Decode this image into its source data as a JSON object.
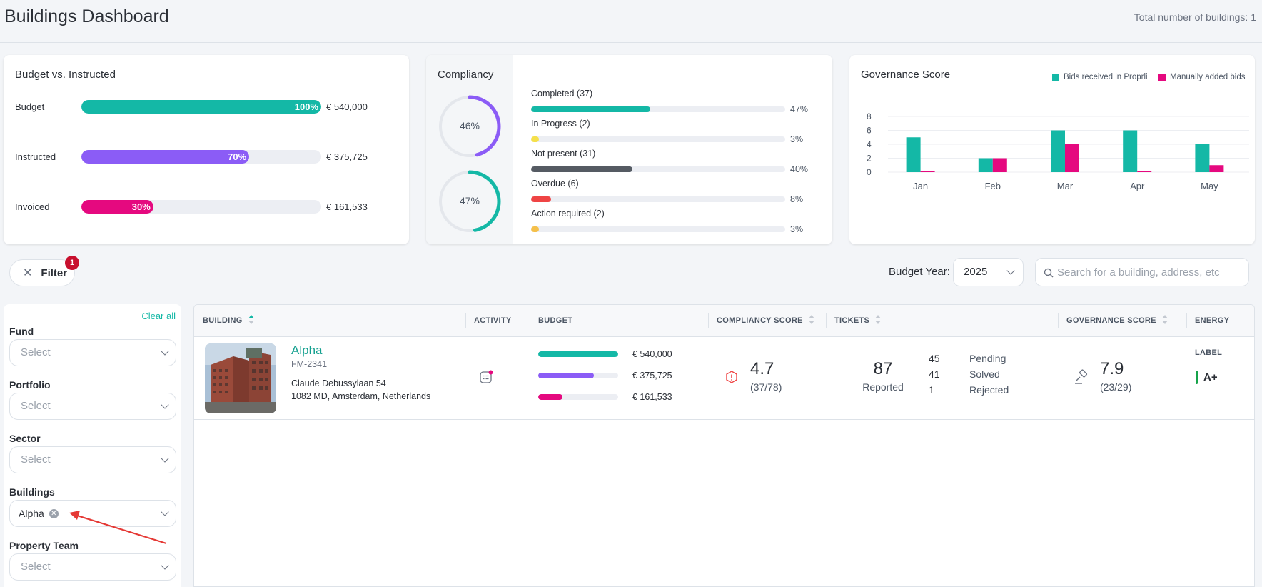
{
  "header": {
    "title": "Buildings Dashboard",
    "total_buildings": "Total number of buildings: 1"
  },
  "budget_card": {
    "title": "Budget vs. Instructed",
    "rows": [
      {
        "label": "Budget",
        "percent": 100,
        "percent_label": "100%",
        "value": "€ 540,000",
        "color": "#14b8a6"
      },
      {
        "label": "Instructed",
        "percent": 70,
        "percent_label": "70%",
        "value": "€ 375,725",
        "color": "#8b5cf6"
      },
      {
        "label": "Invoiced",
        "percent": 30,
        "percent_label": "30%",
        "value": "€ 161,533",
        "color": "#e5097f"
      }
    ]
  },
  "compliancy_card": {
    "title": "Compliancy",
    "donuts": [
      {
        "label": "46%",
        "percent": 46,
        "color": "#8b5cf6"
      },
      {
        "label": "47%",
        "percent": 47,
        "color": "#14b8a6"
      }
    ],
    "rows": [
      {
        "label": "Completed (37)",
        "percent": 47,
        "percent_label": "47%",
        "color": "#14b8a6"
      },
      {
        "label": "In Progress (2)",
        "percent": 3,
        "percent_label": "3%",
        "color": "#f5e04a"
      },
      {
        "label": "Not present (31)",
        "percent": 40,
        "percent_label": "40%",
        "color": "#555b63"
      },
      {
        "label": "Overdue (6)",
        "percent": 8,
        "percent_label": "8%",
        "color": "#ef4444"
      },
      {
        "label": "Action required (2)",
        "percent": 3,
        "percent_label": "3%",
        "color": "#f5c04a"
      }
    ]
  },
  "governance_card": {
    "title": "Governance Score",
    "legend": [
      {
        "label": "Bids received in Proprli",
        "color": "#14b8a6"
      },
      {
        "label": "Manually added bids",
        "color": "#e5097f"
      }
    ]
  },
  "chart_data": {
    "type": "bar",
    "categories": [
      "Jan",
      "Feb",
      "Mar",
      "Apr",
      "May"
    ],
    "series": [
      {
        "name": "Bids received in Proprli",
        "values": [
          5,
          2,
          6,
          6,
          4
        ],
        "color": "#14b8a6"
      },
      {
        "name": "Manually added bids",
        "values": [
          0,
          2,
          4,
          0,
          1
        ],
        "color": "#e5097f"
      }
    ],
    "yticks": [
      "0",
      "2",
      "4",
      "6",
      "8"
    ],
    "ylim": [
      0,
      8
    ],
    "grid": true,
    "legend_position": "top-right"
  },
  "toolbar": {
    "filter_label": "Filter",
    "filter_count": "1",
    "budget_year_label": "Budget Year:",
    "budget_year_value": "2025",
    "search_placeholder": "Search for a building, address, etc"
  },
  "sidebar": {
    "clear_all": "Clear all",
    "filters": [
      {
        "label": "Fund",
        "value": "Select"
      },
      {
        "label": "Portfolio",
        "value": "Select"
      },
      {
        "label": "Sector",
        "value": "Select"
      },
      {
        "label": "Buildings",
        "chip": "Alpha"
      },
      {
        "label": "Property Team",
        "value": "Select"
      }
    ]
  },
  "table": {
    "columns": [
      "BUILDING",
      "ACTIVITY",
      "BUDGET",
      "COMPLIANCY SCORE",
      "TICKETS",
      "GOVERNANCE SCORE",
      "ENERGY LABEL"
    ],
    "rows": [
      {
        "name": "Alpha",
        "code": "FM-2341",
        "address_line1": "Claude Debussylaan 54",
        "address_line2": "1082 MD, Amsterdam, Netherlands",
        "budget": [
          {
            "value": "€ 540,000",
            "percent": 100,
            "color": "#14b8a6"
          },
          {
            "value": "€ 375,725",
            "percent": 70,
            "color": "#8b5cf6"
          },
          {
            "value": "€ 161,533",
            "percent": 30,
            "color": "#e5097f"
          }
        ],
        "compliancy_score": "4.7",
        "compliancy_detail": "(37/78)",
        "tickets_total": "87",
        "tickets_total_label": "Reported",
        "tickets_breakdown": [
          {
            "count": "45",
            "label": "Pending"
          },
          {
            "count": "41",
            "label": "Solved"
          },
          {
            "count": "1",
            "label": "Rejected"
          }
        ],
        "governance_score": "7.9",
        "governance_detail": "(23/29)",
        "energy_label": "A+"
      }
    ]
  }
}
